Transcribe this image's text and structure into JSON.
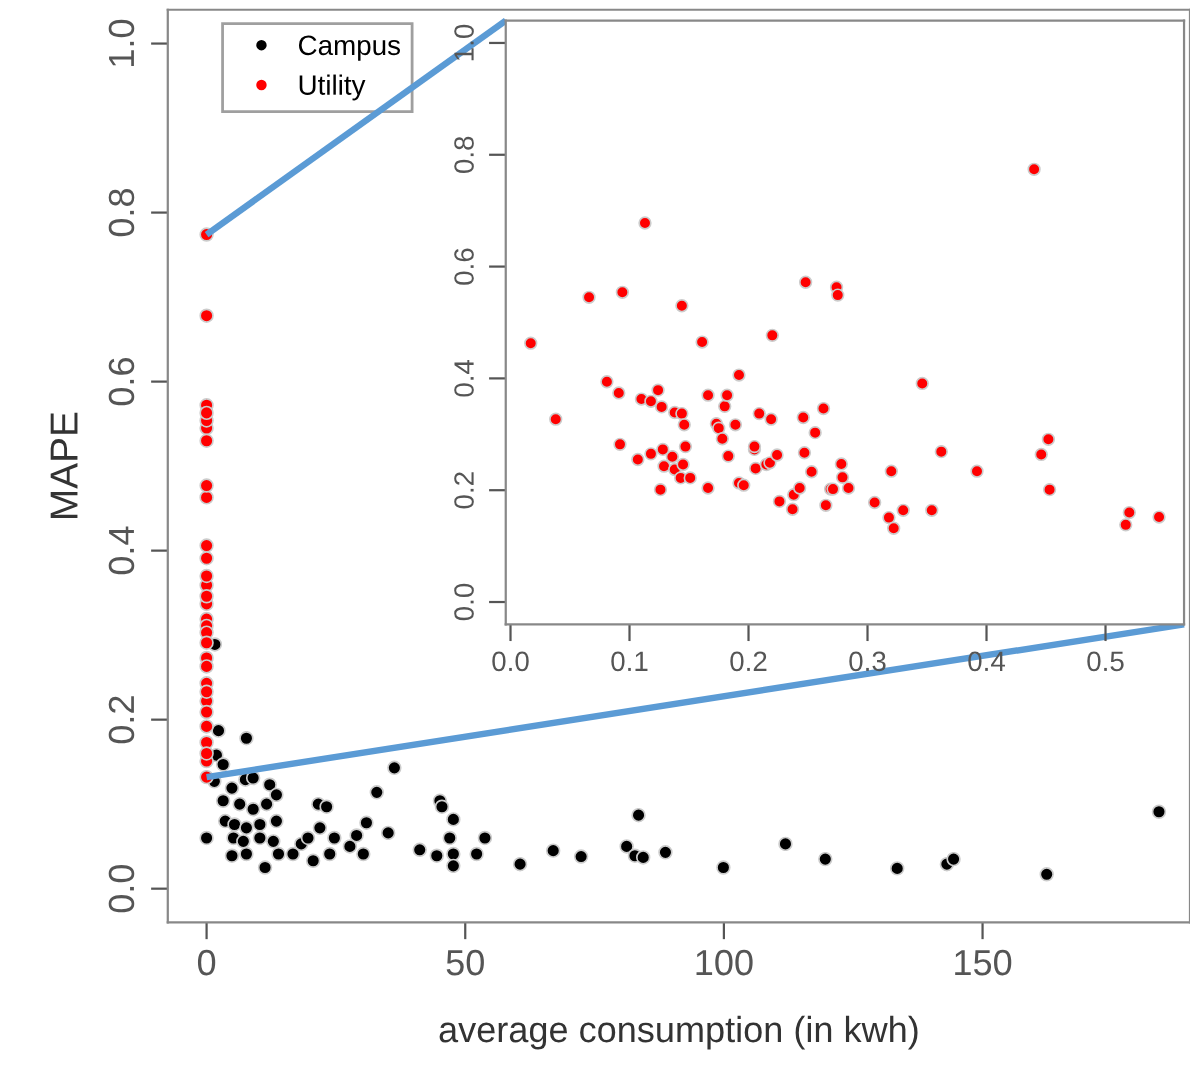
{
  "chart_data": [
    {
      "type": "scatter",
      "xlabel": "average consumption (in kwh)",
      "ylabel": "MAPE",
      "legend": "top left",
      "marker": "circle",
      "xlim": [
        -7.5,
        190.1
      ],
      "ylim": [
        -0.04,
        1.04
      ],
      "xticks": [
        0,
        50,
        100,
        150
      ],
      "yticks": [
        {
          "value": 0,
          "label": "0.0"
        },
        {
          "value": 0.2,
          "label": "0.2"
        },
        {
          "value": 0.4,
          "label": "0.4"
        },
        {
          "value": 0.6,
          "label": "0.6"
        },
        {
          "value": 0.8,
          "label": "0.8"
        },
        {
          "value": 1,
          "label": "1.0"
        }
      ],
      "series": [
        {
          "name": "Campus",
          "color": "#000000",
          "x": [
            0,
            1.6,
            2.3,
            7.7,
            1.9,
            3.2,
            1.5,
            4.9,
            7.5,
            9.0,
            12.2,
            13.5,
            3.2,
            6.4,
            9.0,
            11.6,
            3.6,
            5.4,
            7.7,
            10.3,
            13.5,
            5.2,
            7.1,
            10.3,
            12.9,
            4.9,
            7.7,
            11.3,
            13.9,
            16.7,
            18.3,
            19.6,
            20.6,
            21.6,
            23.2,
            21.9,
            24.7,
            23.8,
            27.7,
            29.0,
            30.3,
            30.9,
            32.9,
            35.1,
            36.3,
            41.2,
            44.5,
            45.1,
            45.5,
            47.7,
            47.0,
            47.7,
            47.7,
            52.2,
            53.8,
            60.6,
            67.0,
            72.4,
            81.2,
            82.8,
            83.5,
            84.4,
            88.7,
            99.9,
            111.9,
            119.6,
            133.5,
            143.1,
            144.4,
            162.4,
            184.1
          ],
          "values": [
            0.06,
            0.289,
            0.187,
            0.178,
            0.158,
            0.147,
            0.127,
            0.119,
            0.129,
            0.131,
            0.123,
            0.111,
            0.104,
            0.1,
            0.094,
            0.1,
            0.08,
            0.076,
            0.072,
            0.076,
            0.08,
            0.06,
            0.056,
            0.06,
            0.056,
            0.039,
            0.041,
            0.025,
            0.041,
            0.041,
            0.053,
            0.06,
            0.033,
            0.1,
            0.097,
            0.072,
            0.06,
            0.041,
            0.05,
            0.063,
            0.041,
            0.078,
            0.114,
            0.066,
            0.143,
            0.046,
            0.039,
            0.104,
            0.097,
            0.082,
            0.06,
            0.041,
            0.027,
            0.041,
            0.06,
            0.029,
            0.045,
            0.038,
            0.05,
            0.039,
            0.087,
            0.037,
            0.043,
            0.025,
            0.053,
            0.035,
            0.024,
            0.029,
            0.035,
            0.017,
            0.091
          ]
        },
        {
          "name": "Utility",
          "color": "#ff0000",
          "x": [
            0,
            0,
            0,
            0,
            0,
            0,
            0,
            0,
            0,
            0,
            0,
            0,
            0,
            0,
            0,
            0,
            0,
            0,
            0,
            0,
            0,
            0,
            0,
            0,
            0,
            0,
            0,
            0,
            0,
            0
          ],
          "values": [
            0.463,
            0.545,
            0.554,
            0.678,
            0.359,
            0.273,
            0.243,
            0.222,
            0.337,
            0.53,
            0.37,
            0.319,
            0.311,
            0.406,
            0.209,
            0.477,
            0.263,
            0.192,
            0.572,
            0.233,
            0.303,
            0.346,
            0.173,
            0.563,
            0.151,
            0.132,
            0.391,
            0.774,
            0.291,
            0.16
          ]
        }
      ]
    },
    {
      "type": "scatter",
      "marker": "circle",
      "xlim": [
        -0.004,
        0.566
      ],
      "ylim": [
        -0.04,
        1.04
      ],
      "xticks": [
        {
          "value": 0,
          "label": "0.0"
        },
        {
          "value": 0.1,
          "label": "0.1"
        },
        {
          "value": 0.2,
          "label": "0.2"
        },
        {
          "value": 0.3,
          "label": "0.3"
        },
        {
          "value": 0.4,
          "label": "0.4"
        },
        {
          "value": 0.5,
          "label": "0.5"
        }
      ],
      "yticks": [
        {
          "value": 0,
          "label": "0.0"
        },
        {
          "value": 0.2,
          "label": "0.2"
        },
        {
          "value": 0.4,
          "label": "0.4"
        },
        {
          "value": 0.6,
          "label": "0.6"
        },
        {
          "value": 0.8,
          "label": "0.8"
        },
        {
          "value": 1,
          "label": "1.0"
        }
      ],
      "series": [
        {
          "color": "#ff0000",
          "x": [
            0.017,
            0.038,
            0.066,
            0.081,
            0.091,
            0.094,
            0.092,
            0.107,
            0.11,
            0.113,
            0.118,
            0.118,
            0.124,
            0.126,
            0.127,
            0.128,
            0.129,
            0.136,
            0.138,
            0.138,
            0.143,
            0.144,
            0.144,
            0.145,
            0.146,
            0.147,
            0.151,
            0.161,
            0.166,
            0.166,
            0.173,
            0.175,
            0.178,
            0.18,
            0.182,
            0.183,
            0.189,
            0.192,
            0.192,
            0.196,
            0.205,
            0.205,
            0.206,
            0.209,
            0.215,
            0.218,
            0.219,
            0.22,
            0.224,
            0.226,
            0.237,
            0.238,
            0.243,
            0.246,
            0.247,
            0.248,
            0.253,
            0.256,
            0.263,
            0.265,
            0.269,
            0.271,
            0.274,
            0.275,
            0.278,
            0.279,
            0.284,
            0.306,
            0.318,
            0.32,
            0.322,
            0.33,
            0.346,
            0.354,
            0.362,
            0.392,
            0.44,
            0.446,
            0.452,
            0.453,
            0.517,
            0.52,
            0.545
          ],
          "values": [
            0.463,
            0.327,
            0.545,
            0.394,
            0.374,
            0.554,
            0.282,
            0.255,
            0.363,
            0.678,
            0.359,
            0.265,
            0.379,
            0.201,
            0.349,
            0.273,
            0.243,
            0.26,
            0.339,
            0.237,
            0.222,
            0.337,
            0.53,
            0.246,
            0.317,
            0.278,
            0.222,
            0.465,
            0.37,
            0.204,
            0.319,
            0.311,
            0.292,
            0.35,
            0.37,
            0.261,
            0.317,
            0.406,
            0.213,
            0.209,
            0.273,
            0.278,
            0.239,
            0.337,
            0.246,
            0.249,
            0.327,
            0.477,
            0.263,
            0.18,
            0.166,
            0.192,
            0.204,
            0.33,
            0.267,
            0.572,
            0.233,
            0.303,
            0.346,
            0.173,
            0.202,
            0.202,
            0.563,
            0.549,
            0.247,
            0.223,
            0.204,
            0.178,
            0.151,
            0.234,
            0.132,
            0.164,
            0.391,
            0.164,
            0.269,
            0.234,
            0.774,
            0.264,
            0.291,
            0.201,
            0.138,
            0.16,
            0.152
          ]
        }
      ]
    }
  ]
}
